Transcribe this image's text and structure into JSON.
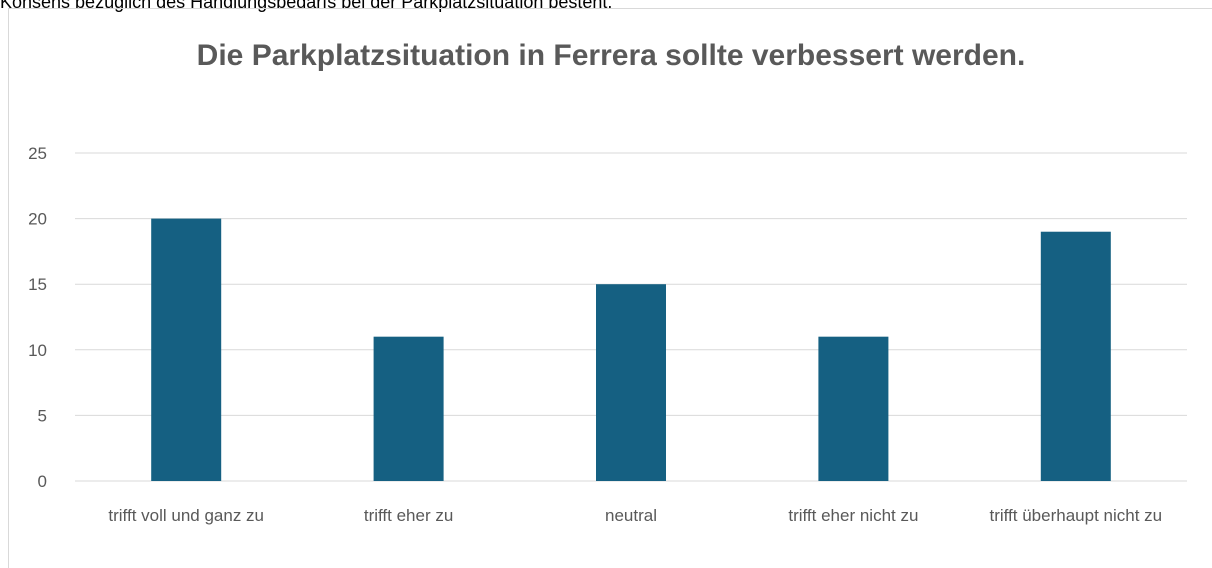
{
  "page_text": "Konsens bezüglich des Handlungsbedarfs bei der Parkplatzsituation besteht.",
  "chart_data": {
    "type": "bar",
    "title": "Die Parkplatzsituation in Ferrera sollte verbessert werden.",
    "categories": [
      "trifft voll und ganz zu",
      "trifft eher zu",
      "neutral",
      "trifft eher nicht zu",
      "trifft überhaupt nicht zu"
    ],
    "values": [
      20,
      11,
      15,
      11,
      19
    ],
    "color": "#156082",
    "ylim": [
      0,
      25
    ],
    "yticks": [
      0,
      5,
      10,
      15,
      20,
      25
    ],
    "grid": true
  }
}
